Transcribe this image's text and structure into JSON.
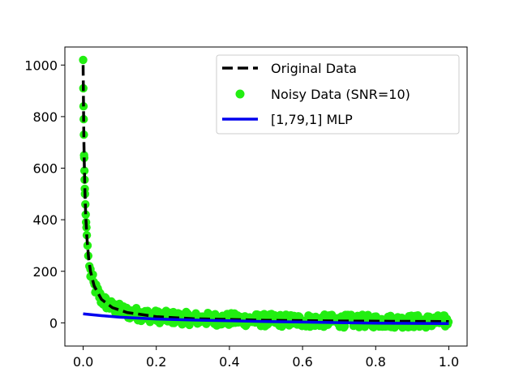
{
  "chart_data": {
    "type": "scatter",
    "title": "",
    "xlabel": "",
    "ylabel": "",
    "xlim": [
      -0.05,
      1.05
    ],
    "ylim": [
      -90,
      1070
    ],
    "xticks": [
      0.0,
      0.2,
      0.4,
      0.6,
      0.8,
      1.0
    ],
    "xtick_labels": [
      "0.0",
      "0.2",
      "0.4",
      "0.6",
      "0.8",
      "1.0"
    ],
    "yticks": [
      0,
      200,
      400,
      600,
      800,
      1000
    ],
    "ytick_labels": [
      "0",
      "200",
      "400",
      "600",
      "800",
      "1000"
    ],
    "grid": false,
    "legend_position": "top-right",
    "series": [
      {
        "name": "Original Data",
        "kind": "line",
        "style": "dashed",
        "color": "#000000",
        "x": [
          0.0,
          0.001,
          0.002,
          0.003,
          0.005,
          0.007,
          0.01,
          0.015,
          0.02,
          0.03,
          0.05,
          0.08,
          0.12,
          0.2,
          0.3,
          0.5,
          0.7,
          1.0
        ],
        "y": [
          1000,
          833,
          714,
          625,
          500,
          417,
          333,
          250,
          200,
          143,
          91,
          59,
          40,
          24,
          16,
          10,
          7,
          5
        ]
      },
      {
        "name": "Noisy Data (SNR=10)",
        "kind": "scatter",
        "color": "#22ee11",
        "noise_amplitude": 25,
        "x_start": 0.0,
        "x_end": 1.0,
        "x": [
          0.0,
          0.0005,
          0.001,
          0.0015,
          0.002,
          0.0025,
          0.003,
          0.0035,
          0.004,
          0.0045,
          0.005,
          0.006,
          0.007,
          0.008,
          0.009,
          0.01,
          0.012,
          0.014,
          0.017,
          0.02
        ],
        "y": [
          1020,
          910,
          840,
          790,
          730,
          650,
          640,
          590,
          555,
          520,
          500,
          460,
          420,
          390,
          370,
          340,
          300,
          260,
          220,
          180
        ]
      },
      {
        "name": "[1,79,1] MLP",
        "kind": "line",
        "style": "solid",
        "color": "#0000ee",
        "x": [
          0.0,
          0.05,
          0.1,
          0.2,
          0.3,
          0.4,
          0.5,
          0.6,
          0.7,
          0.8,
          0.9,
          1.0
        ],
        "y": [
          35,
          28,
          22,
          15,
          11,
          8,
          5,
          3,
          1,
          -1,
          -2,
          -3
        ]
      }
    ]
  }
}
